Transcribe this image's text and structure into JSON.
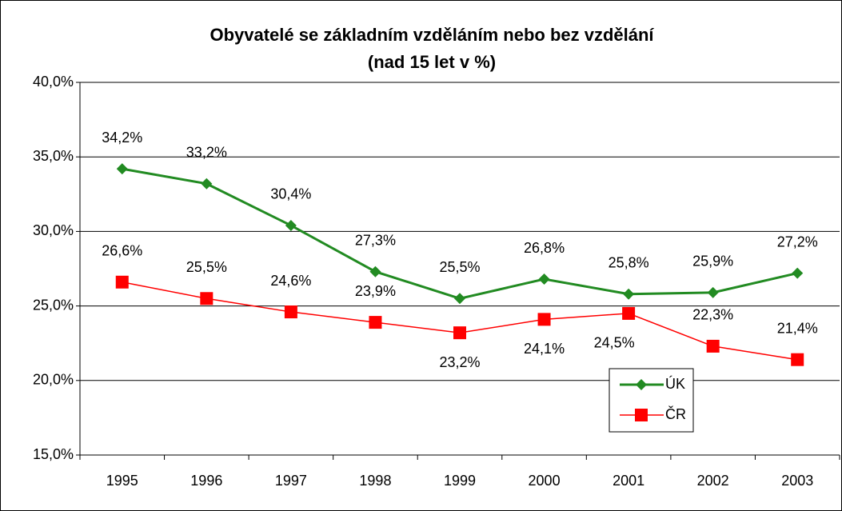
{
  "chart_data": {
    "type": "line",
    "title": "Obyvatelé se základním vzděláním nebo bez vzdělání",
    "subtitle": "(nad 15 let v %)",
    "categories": [
      "1995",
      "1996",
      "1997",
      "1998",
      "1999",
      "2000",
      "2001",
      "2002",
      "2003"
    ],
    "series": [
      {
        "name": "ÚK",
        "color": "#228b22",
        "marker": "diamond",
        "values": [
          34.2,
          33.2,
          30.4,
          27.3,
          25.5,
          26.8,
          25.8,
          25.9,
          27.2
        ],
        "value_labels": [
          "34,2%",
          "33,2%",
          "30,4%",
          "27,3%",
          "25,5%",
          "26,8%",
          "25,8%",
          "25,9%",
          "27,2%"
        ]
      },
      {
        "name": "ČR",
        "color": "#ff0000",
        "marker": "square",
        "values": [
          26.6,
          25.5,
          24.6,
          23.9,
          23.2,
          24.1,
          24.5,
          22.3,
          21.4
        ],
        "value_labels": [
          "26,6%",
          "25,5%",
          "24,6%",
          "23,9%",
          "23,2%",
          "24,1%",
          "24,5%",
          "22,3%",
          "21,4%"
        ]
      }
    ],
    "ylim": [
      15,
      40
    ],
    "yticks": [
      {
        "value": 15,
        "label": "15,0%"
      },
      {
        "value": 20,
        "label": "20,0%"
      },
      {
        "value": 25,
        "label": "25,0%"
      },
      {
        "value": 30,
        "label": "30,0%"
      },
      {
        "value": 35,
        "label": "35,0%"
      },
      {
        "value": 40,
        "label": "40,0%"
      }
    ],
    "grid": true
  }
}
